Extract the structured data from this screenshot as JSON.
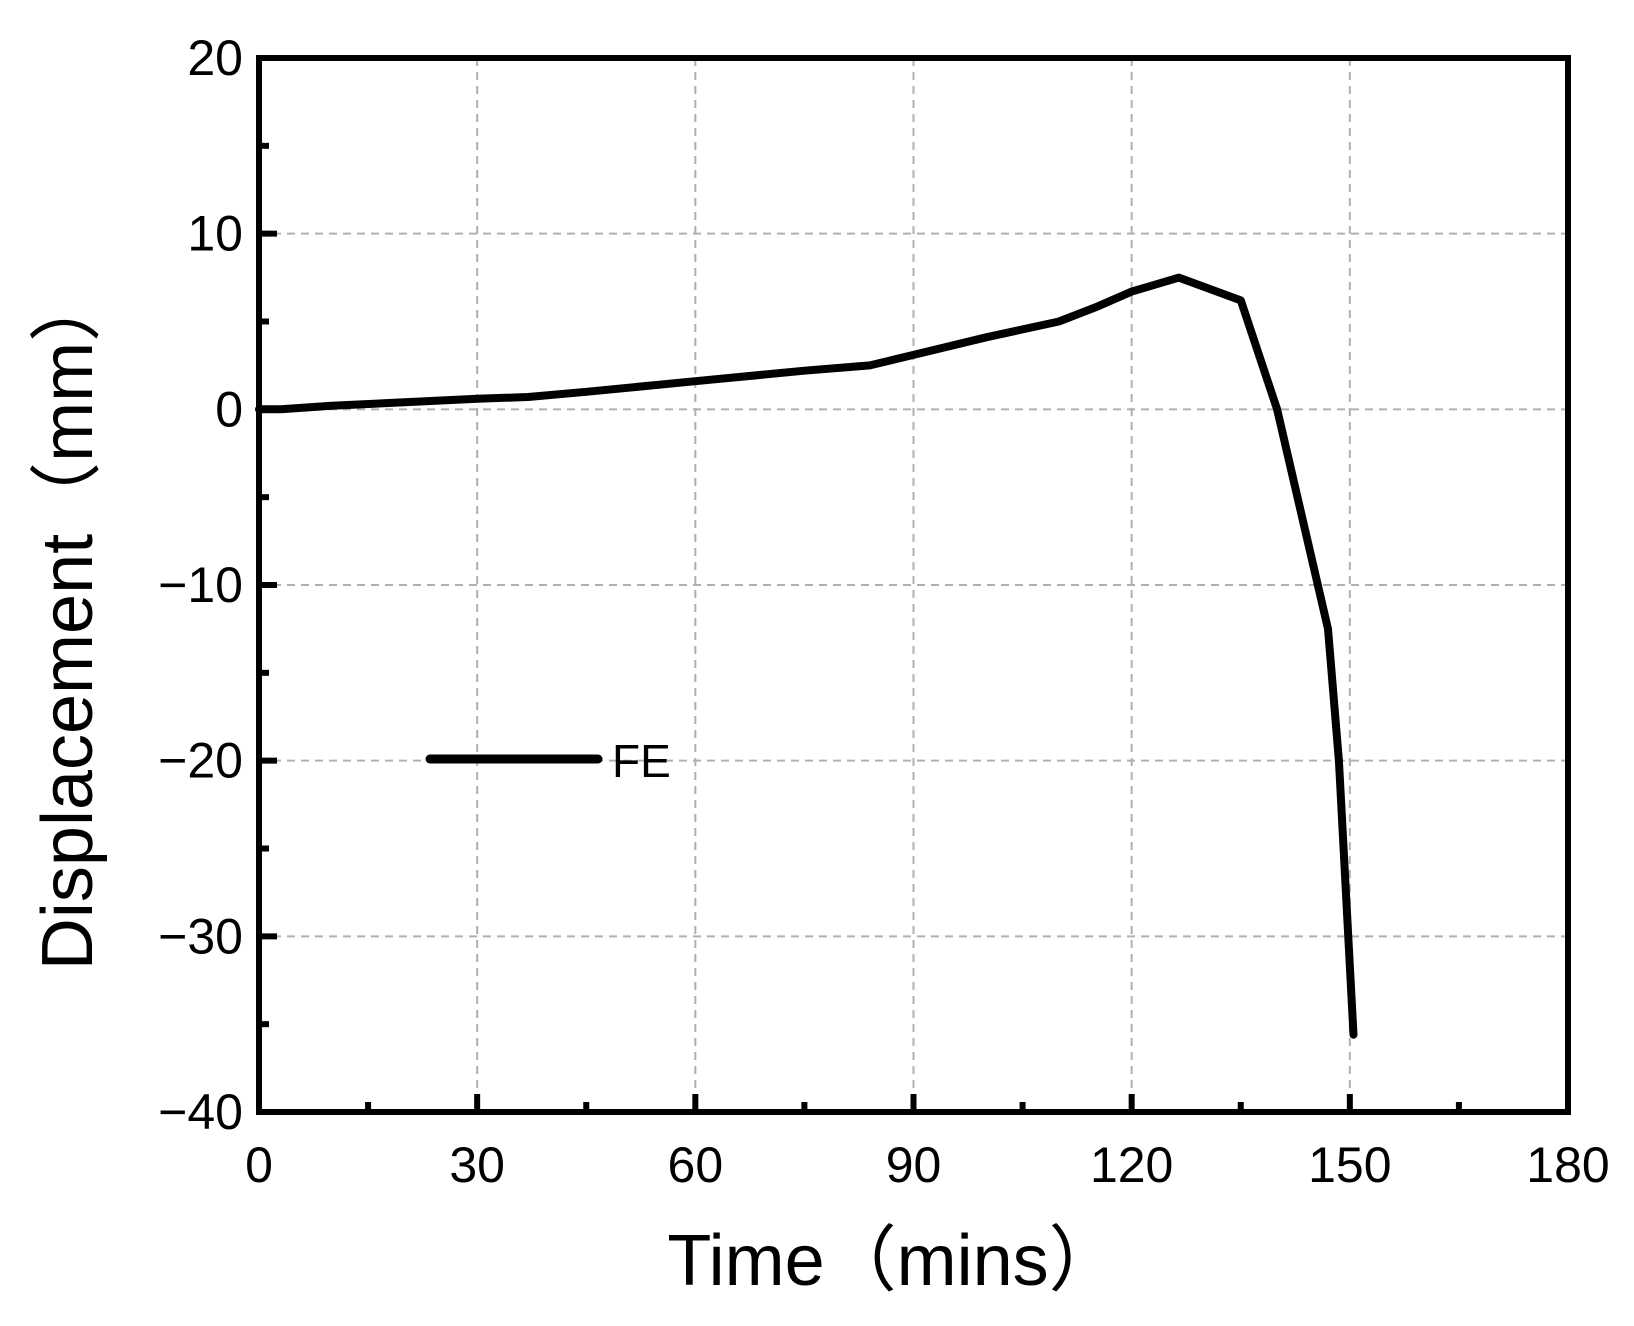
{
  "chart_data": {
    "type": "line",
    "xlabel": "Time（mins）",
    "ylabel": "Displacement（mm）",
    "xlim": [
      0,
      180
    ],
    "ylim": [
      -40,
      20
    ],
    "x_ticks": [
      0,
      30,
      60,
      90,
      120,
      150,
      180
    ],
    "x_tick_labels": [
      "0",
      "30",
      "60",
      "90",
      "120",
      "150",
      "180"
    ],
    "y_ticks": [
      20,
      10,
      0,
      -10,
      -20,
      -30,
      -40
    ],
    "y_tick_labels": [
      "20",
      "10",
      "0",
      "−10",
      "−20",
      "−30",
      "−40"
    ],
    "grid": true,
    "legend_position": "center-left",
    "series": [
      {
        "name": "FE",
        "color": "#000000",
        "x": [
          0,
          3,
          10,
          20,
          30,
          37,
          45,
          60,
          75,
          84,
          90,
          100,
          110,
          115,
          120,
          126.5,
          135,
          140,
          147,
          148.5,
          150.5
        ],
        "y": [
          0,
          0,
          0.2,
          0.4,
          0.6,
          0.7,
          1.0,
          1.6,
          2.2,
          2.5,
          3.1,
          4.1,
          5.0,
          5.8,
          6.7,
          7.5,
          6.2,
          0,
          -12.5,
          -20,
          -35.6
        ]
      }
    ]
  }
}
